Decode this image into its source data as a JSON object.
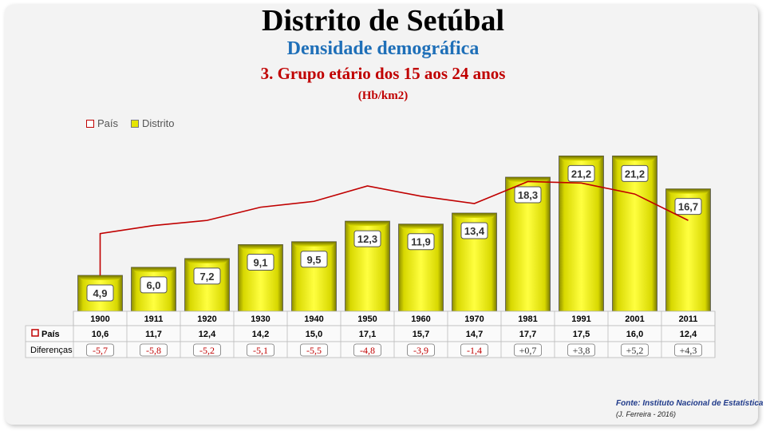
{
  "titles": {
    "main": "Distrito de Setúbal",
    "sub": "Densidade demográfica",
    "group": "3. Grupo etário dos 15 aos 24 anos",
    "unit": "(Hb/km2)"
  },
  "legend": {
    "pais": "País",
    "distrito": "Distrito"
  },
  "table": {
    "pais_label": "País",
    "diff_label": "Diferenças"
  },
  "footer": {
    "source": "Fonte: Instituto Nacional de Estatística",
    "author": "(J. Ferreira - 2016)"
  },
  "colors": {
    "bar": "#ffff00",
    "line": "#c00000",
    "diff_negative": "#c00000",
    "diff_positive": "#333333"
  },
  "chart_data": {
    "type": "bar",
    "categories": [
      "1900",
      "1911",
      "1920",
      "1930",
      "1940",
      "1950",
      "1960",
      "1970",
      "1981",
      "1991",
      "2001",
      "2011"
    ],
    "series": [
      {
        "name": "Distrito",
        "type": "bar",
        "values": [
          4.9,
          6.0,
          7.2,
          9.1,
          9.5,
          12.3,
          11.9,
          13.4,
          18.3,
          21.2,
          21.2,
          16.7
        ],
        "labels": [
          "4,9",
          "6,0",
          "7,2",
          "9,1",
          "9,5",
          "12,3",
          "11,9",
          "13,4",
          "18,3",
          "21,2",
          "21,2",
          "16,7"
        ]
      },
      {
        "name": "País",
        "type": "line",
        "values": [
          10.6,
          11.7,
          12.4,
          14.2,
          15.0,
          17.1,
          15.7,
          14.7,
          17.7,
          17.5,
          16.0,
          12.4
        ],
        "labels": [
          "10,6",
          "11,7",
          "12,4",
          "14,2",
          "15,0",
          "17,1",
          "15,7",
          "14,7",
          "17,7",
          "17,5",
          "16,0",
          "12,4"
        ]
      }
    ],
    "differences": [
      "-5,7",
      "-5,8",
      "-5,2",
      "-5,1",
      "-5,5",
      "-4,8",
      "-3,9",
      "-1,4",
      "+0,7",
      "+3,8",
      "+5,2",
      "+4,3"
    ],
    "ylim": [
      0,
      22
    ],
    "legend_position": "top-left",
    "grid": false
  }
}
